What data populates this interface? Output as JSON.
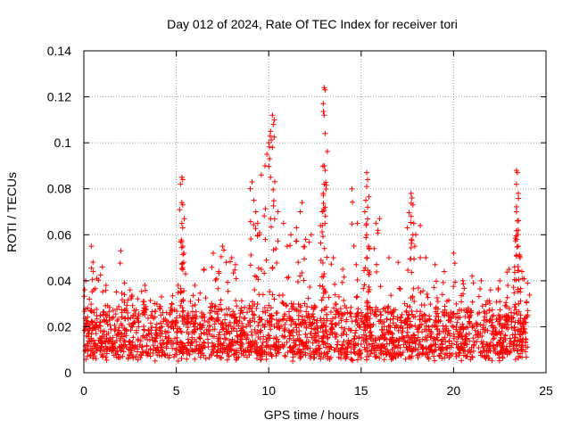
{
  "chart_data": {
    "type": "scatter",
    "title": "Day 012 of 2024, Rate Of TEC Index for receiver tori",
    "xlabel": "GPS time / hours",
    "ylabel": "ROTI / TECUs",
    "xlim": [
      0,
      25
    ],
    "ylim": [
      0,
      0.14
    ],
    "xticks": [
      0,
      5,
      10,
      15,
      20,
      25
    ],
    "xtick_labels": [
      "0",
      "5",
      "10",
      "15",
      "20",
      "25"
    ],
    "yticks": [
      0,
      0.02,
      0.04,
      0.06,
      0.08,
      0.1,
      0.12,
      0.14
    ],
    "ytick_labels": [
      "0",
      "0.02",
      "0.04",
      "0.06",
      "0.08",
      "0.1",
      "0.12",
      "0.14"
    ],
    "grid": true,
    "marker": "plus",
    "marker_color": "#ff0000",
    "series": [
      {
        "name": "ROTI",
        "data_range": [
          0,
          24
        ],
        "baseline_range": [
          0.005,
          0.025
        ],
        "points": [
          [
            0.1,
            0.04
          ],
          [
            0.3,
            0.032
          ],
          [
            0.4,
            0.055
          ],
          [
            0.5,
            0.044
          ],
          [
            0.7,
            0.041
          ],
          [
            1.0,
            0.046
          ],
          [
            1.2,
            0.038
          ],
          [
            2.0,
            0.053
          ],
          [
            2.2,
            0.039
          ],
          [
            2.5,
            0.036
          ],
          [
            3.2,
            0.031
          ],
          [
            3.3,
            0.038
          ],
          [
            4.2,
            0.033
          ],
          [
            5.1,
            0.038
          ],
          [
            5.3,
            0.085
          ],
          [
            5.35,
            0.084
          ],
          [
            5.3,
            0.074
          ],
          [
            5.35,
            0.073
          ],
          [
            5.3,
            0.065
          ],
          [
            5.35,
            0.063
          ],
          [
            5.3,
            0.057
          ],
          [
            5.35,
            0.055
          ],
          [
            5.4,
            0.048
          ],
          [
            5.5,
            0.043
          ],
          [
            6.0,
            0.038
          ],
          [
            6.5,
            0.045
          ],
          [
            7.0,
            0.052
          ],
          [
            7.3,
            0.044
          ],
          [
            7.5,
            0.055
          ],
          [
            7.7,
            0.048
          ],
          [
            8.0,
            0.05
          ],
          [
            8.2,
            0.047
          ],
          [
            9.0,
            0.08
          ],
          [
            9.1,
            0.083
          ],
          [
            9.2,
            0.075
          ],
          [
            9.3,
            0.07
          ],
          [
            9.4,
            0.065
          ],
          [
            9.5,
            0.06
          ],
          [
            9.6,
            0.086
          ],
          [
            9.8,
            0.09
          ],
          [
            9.9,
            0.095
          ],
          [
            10.0,
            0.1
          ],
          [
            10.1,
            0.105
          ],
          [
            10.2,
            0.112
          ],
          [
            10.25,
            0.108
          ],
          [
            10.3,
            0.11
          ],
          [
            10.2,
            0.098
          ],
          [
            10.1,
            0.085
          ],
          [
            10.5,
            0.07
          ],
          [
            10.8,
            0.065
          ],
          [
            11.0,
            0.055
          ],
          [
            11.2,
            0.06
          ],
          [
            11.5,
            0.063
          ],
          [
            11.7,
            0.07
          ],
          [
            11.8,
            0.074
          ],
          [
            12.0,
            0.058
          ],
          [
            12.3,
            0.06
          ],
          [
            12.8,
            0.064
          ],
          [
            12.9,
            0.07
          ],
          [
            13.0,
            0.124
          ],
          [
            13.05,
            0.123
          ],
          [
            12.95,
            0.117
          ],
          [
            13.0,
            0.112
          ],
          [
            13.05,
            0.104
          ],
          [
            13.0,
            0.09
          ],
          [
            13.05,
            0.088
          ],
          [
            13.0,
            0.082
          ],
          [
            12.95,
            0.078
          ],
          [
            13.05,
            0.072
          ],
          [
            13.5,
            0.05
          ],
          [
            14.0,
            0.045
          ],
          [
            14.5,
            0.08
          ],
          [
            14.8,
            0.065
          ],
          [
            15.2,
            0.07
          ],
          [
            15.3,
            0.087
          ],
          [
            15.35,
            0.084
          ],
          [
            15.3,
            0.081
          ],
          [
            15.25,
            0.075
          ],
          [
            15.35,
            0.072
          ],
          [
            15.3,
            0.06
          ],
          [
            15.4,
            0.055
          ],
          [
            15.3,
            0.05
          ],
          [
            15.8,
            0.065
          ],
          [
            16.0,
            0.067
          ],
          [
            16.5,
            0.05
          ],
          [
            17.0,
            0.048
          ],
          [
            17.5,
            0.063
          ],
          [
            17.7,
            0.078
          ],
          [
            17.75,
            0.076
          ],
          [
            17.8,
            0.073
          ],
          [
            17.7,
            0.068
          ],
          [
            17.85,
            0.065
          ],
          [
            17.8,
            0.06
          ],
          [
            17.9,
            0.055
          ],
          [
            18.2,
            0.064
          ],
          [
            18.5,
            0.05
          ],
          [
            19.0,
            0.047
          ],
          [
            19.5,
            0.044
          ],
          [
            20.0,
            0.052
          ],
          [
            20.5,
            0.04
          ],
          [
            21.0,
            0.042
          ],
          [
            21.5,
            0.04
          ],
          [
            22.0,
            0.036
          ],
          [
            22.5,
            0.04
          ],
          [
            23.0,
            0.045
          ],
          [
            23.3,
            0.046
          ],
          [
            23.4,
            0.088
          ],
          [
            23.45,
            0.087
          ],
          [
            23.4,
            0.082
          ],
          [
            23.5,
            0.078
          ],
          [
            23.4,
            0.07
          ],
          [
            23.45,
            0.066
          ],
          [
            23.5,
            0.062
          ],
          [
            23.4,
            0.058
          ],
          [
            23.5,
            0.055
          ],
          [
            23.6,
            0.05
          ],
          [
            23.7,
            0.044
          ],
          [
            24.0,
            0.039
          ]
        ]
      }
    ]
  }
}
